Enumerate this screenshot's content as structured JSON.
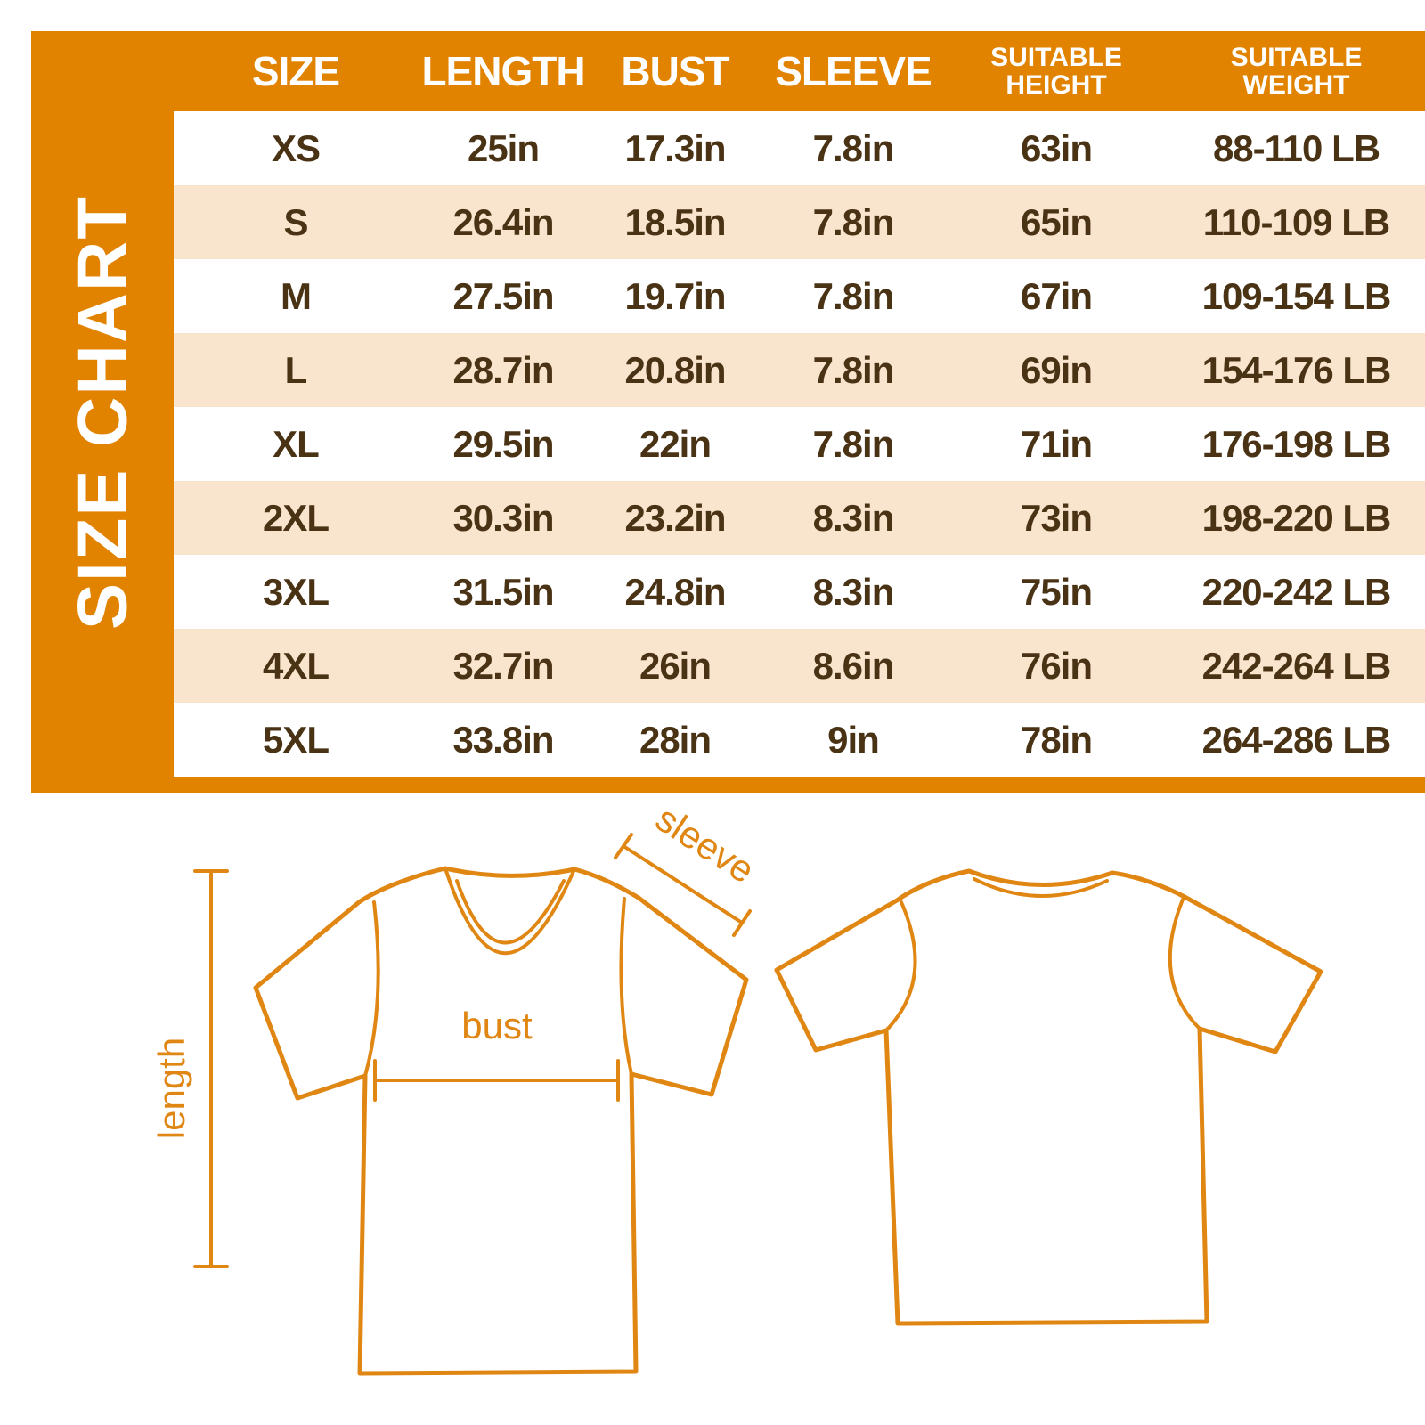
{
  "colors": {
    "panel_orange": "#E28300",
    "row_alt_peach": "#F9E5CE",
    "row_white": "#FFFFFF",
    "text_brown": "#4A3315",
    "diagram_orange": "#E08613",
    "header_text": "#FFFFFF"
  },
  "sidebar": {
    "title": "SIZE CHART"
  },
  "chart_data": {
    "type": "table",
    "title": "SIZE CHART",
    "columns": [
      "SIZE",
      "LENGTH",
      "BUST",
      "SLEEVE",
      "SUITABLE HEIGHT",
      "SUITABLE WEIGHT"
    ],
    "rows": [
      [
        "XS",
        "25in",
        "17.3in",
        "7.8in",
        "63in",
        "88-110 LB"
      ],
      [
        "S",
        "26.4in",
        "18.5in",
        "7.8in",
        "65in",
        "110-109 LB"
      ],
      [
        "M",
        "27.5in",
        "19.7in",
        "7.8in",
        "67in",
        "109-154 LB"
      ],
      [
        "L",
        "28.7in",
        "20.8in",
        "7.8in",
        "69in",
        "154-176 LB"
      ],
      [
        "XL",
        "29.5in",
        "22in",
        "7.8in",
        "71in",
        "176-198 LB"
      ],
      [
        "2XL",
        "30.3in",
        "23.2in",
        "8.3in",
        "73in",
        "198-220 LB"
      ],
      [
        "3XL",
        "31.5in",
        "24.8in",
        "8.3in",
        "75in",
        "220-242 LB"
      ],
      [
        "4XL",
        "32.7in",
        "26in",
        "8.6in",
        "76in",
        "242-264 LB"
      ],
      [
        "5XL",
        "33.8in",
        "28in",
        "9in",
        "78in",
        "264-286 LB"
      ]
    ]
  },
  "diagram": {
    "length_label": "length",
    "bust_label": "bust",
    "sleeve_label": "sleeve"
  }
}
